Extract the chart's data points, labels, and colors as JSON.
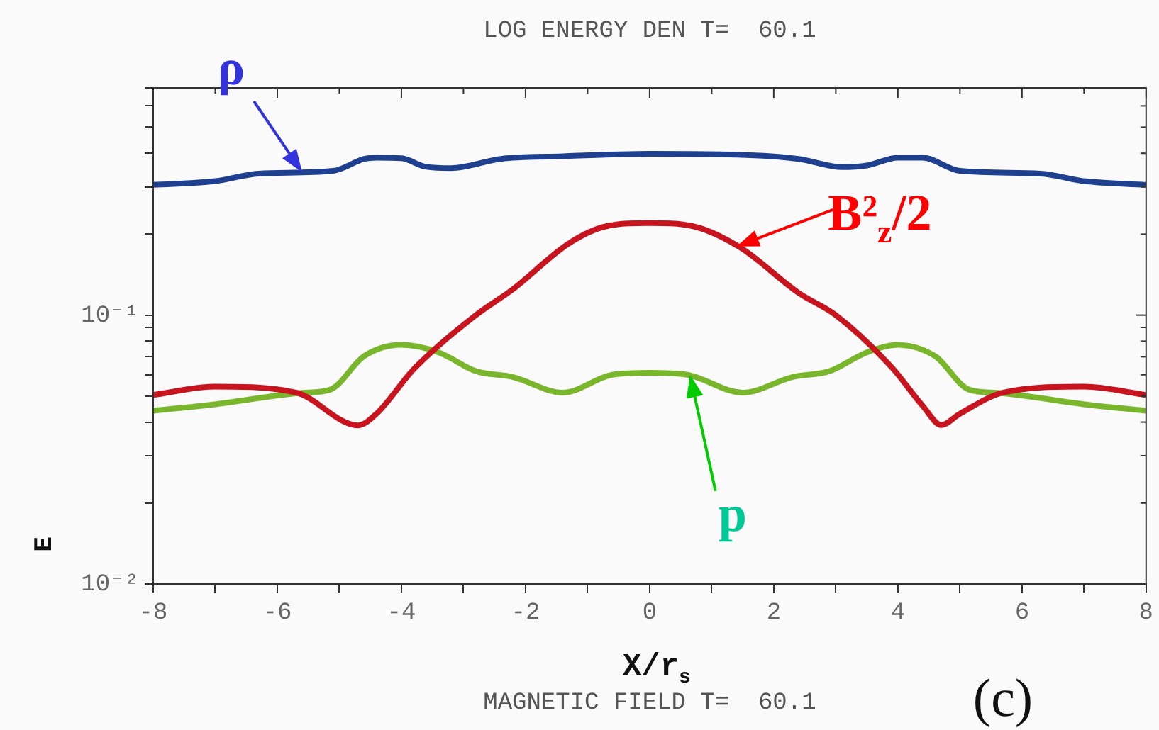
{
  "chart_data": {
    "type": "line",
    "title": "LOG ENERGY DEN T=  60.1",
    "xlabel": "X/r$_{s}$",
    "ylabel": "E",
    "log": "y",
    "grid": false,
    "legend": false,
    "marker": "none",
    "line_style": "solid",
    "xlim": [
      -8,
      8
    ],
    "xticks": [
      -8,
      {
        "value": -7,
        "label": null
      },
      -6,
      {
        "value": -5,
        "label": null
      },
      -4,
      {
        "value": -3,
        "label": null
      },
      -2,
      {
        "value": -1,
        "label": null
      },
      0,
      {
        "value": 1,
        "label": null
      },
      2,
      {
        "value": 3,
        "label": null
      },
      4,
      {
        "value": 5,
        "label": null
      },
      6,
      {
        "value": 7,
        "label": null
      },
      8
    ],
    "ylim": [
      0.01,
      0.7
    ],
    "yticks": [
      {
        "value": 0.01,
        "label": "10⁻²"
      },
      {
        "value": 0.02,
        "label": null
      },
      {
        "value": 0.03,
        "label": null
      },
      {
        "value": 0.04,
        "label": null
      },
      {
        "value": 0.05,
        "label": null
      },
      {
        "value": 0.06,
        "label": null
      },
      {
        "value": 0.07,
        "label": null
      },
      {
        "value": 0.08,
        "label": null
      },
      {
        "value": 0.09,
        "label": null
      },
      {
        "value": 0.1,
        "label": "10⁻¹"
      },
      {
        "value": 0.2,
        "label": null
      },
      {
        "value": 0.3,
        "label": null
      },
      {
        "value": 0.4,
        "label": null
      },
      {
        "value": 0.5,
        "label": null
      },
      {
        "value": 0.6,
        "label": null
      },
      {
        "value": 0.7,
        "label": null
      }
    ],
    "series": [
      {
        "color": "#1f3f8f",
        "x": [
          -8,
          -7,
          -6.3,
          -5.1,
          -4.6,
          -4.4,
          -4.0,
          -3.6,
          -3.2,
          -2.4,
          -1.4,
          0,
          1.4,
          2.4,
          3.1,
          3.5,
          4.0,
          4.4,
          5.0,
          6.3,
          7,
          8
        ],
        "values": [
          0.305,
          0.315,
          0.336,
          0.344,
          0.381,
          0.385,
          0.383,
          0.356,
          0.352,
          0.381,
          0.39,
          0.398,
          0.395,
          0.381,
          0.355,
          0.36,
          0.385,
          0.385,
          0.344,
          0.336,
          0.315,
          0.305
        ]
      },
      {
        "color": "#c8141e",
        "x": [
          -8,
          -7,
          -5.7,
          -4.7,
          -4.4,
          -3.8,
          -2.8,
          -2.2,
          -1.3,
          -0.7,
          0,
          0.7,
          1.45,
          2.4,
          3.0,
          3.9,
          4.4,
          4.7,
          5.0,
          5.7,
          7,
          8
        ],
        "values": [
          0.0505,
          0.0542,
          0.0515,
          0.0389,
          0.043,
          0.063,
          0.1,
          0.125,
          0.185,
          0.214,
          0.22,
          0.214,
          0.179,
          0.121,
          0.1,
          0.064,
          0.046,
          0.039,
          0.043,
          0.0515,
          0.0542,
          0.0505
        ]
      },
      {
        "color": "#7ab62c",
        "x": [
          -8,
          -7,
          -5.6,
          -5.15,
          -4.6,
          -4.0,
          -3.4,
          -2.8,
          -2.2,
          -1.4,
          -0.6,
          0,
          0.6,
          1.5,
          2.3,
          2.9,
          3.5,
          4.0,
          4.6,
          5.15,
          5.6,
          7,
          8
        ],
        "values": [
          0.0441,
          0.0466,
          0.0514,
          0.0528,
          0.0704,
          0.0775,
          0.0727,
          0.0619,
          0.0588,
          0.0515,
          0.06,
          0.061,
          0.06,
          0.0515,
          0.0588,
          0.0619,
          0.0727,
          0.0775,
          0.0704,
          0.0528,
          0.0514,
          0.0466,
          0.0441
        ]
      }
    ],
    "annotations": [
      {
        "text": "ρ",
        "x": -5.6,
        "y": 0.34
      },
      {
        "text": "B²$_{z}$/2",
        "x": 1.4,
        "y": 0.18
      },
      {
        "text": "p",
        "x": 0.65,
        "y": 0.06
      },
      "MAGNETIC FIELD T=  60.1",
      "(c)"
    ]
  }
}
